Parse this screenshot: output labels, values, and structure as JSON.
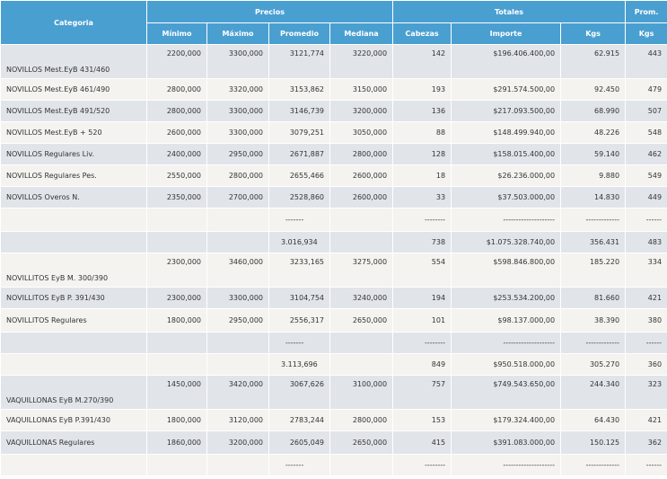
{
  "header": {
    "groups": [
      {
        "key": "categoria",
        "label": "Categoria"
      },
      {
        "key": "precios",
        "label": "Precios"
      },
      {
        "key": "totales",
        "label": "Totales"
      },
      {
        "key": "prom",
        "label": "Prom."
      }
    ],
    "columns": [
      {
        "key": "minimo",
        "label": "Mínimo"
      },
      {
        "key": "maximo",
        "label": "Máximo"
      },
      {
        "key": "promedio",
        "label": "Promedio"
      },
      {
        "key": "mediana",
        "label": "Mediana"
      },
      {
        "key": "cabezas",
        "label": "Cabezas"
      },
      {
        "key": "importe",
        "label": "Importe"
      },
      {
        "key": "kgs",
        "label": "Kgs"
      },
      {
        "key": "prom_kgs",
        "label": "Kgs"
      }
    ]
  },
  "rows": [
    {
      "kind": "data",
      "valign": "bottom",
      "cat": "NOVILLOS Mest.EyB 431/460",
      "cells": [
        "2200,000",
        "3300,000",
        "3121,774",
        "3220,000",
        "142",
        "$196.406.400,00",
        "62.915",
        "443"
      ]
    },
    {
      "kind": "data",
      "cat": "NOVILLOS Mest.EyB 461/490",
      "cells": [
        "2800,000",
        "3320,000",
        "3153,862",
        "3150,000",
        "193",
        "$291.574.500,00",
        "92.450",
        "479"
      ]
    },
    {
      "kind": "data",
      "cat": "NOVILLOS Mest.EyB 491/520",
      "cells": [
        "2800,000",
        "3300,000",
        "3146,739",
        "3200,000",
        "136",
        "$217.093.500,00",
        "68.990",
        "507"
      ]
    },
    {
      "kind": "data",
      "cat": "NOVILLOS Mest.EyB + 520",
      "cells": [
        "2600,000",
        "3300,000",
        "3079,251",
        "3050,000",
        "88",
        "$148.499.940,00",
        "48.226",
        "548"
      ]
    },
    {
      "kind": "data",
      "cat": "NOVILLOS Regulares Liv.",
      "cells": [
        "2400,000",
        "2950,000",
        "2671,887",
        "2800,000",
        "128",
        "$158.015.400,00",
        "59.140",
        "462"
      ]
    },
    {
      "kind": "data",
      "cat": "NOVILLOS Regulares Pes.",
      "cells": [
        "2550,000",
        "2800,000",
        "2655,466",
        "2600,000",
        "18",
        "$26.236.000,00",
        "9.880",
        "549"
      ]
    },
    {
      "kind": "data",
      "cat": "NOVILLOS Overos N.",
      "cells": [
        "2350,000",
        "2700,000",
        "2528,860",
        "2600,000",
        "33",
        "$37.503.000,00",
        "14.830",
        "449"
      ]
    },
    {
      "kind": "separator",
      "cat": "",
      "cells": [
        "",
        "",
        "-------",
        "",
        "--------",
        "--------------------",
        "-------------",
        "------"
      ]
    },
    {
      "kind": "total",
      "cat": "",
      "cells": [
        "",
        "",
        "3.016,934",
        "",
        "738",
        "$1.075.328.740,00",
        "356.431",
        "483"
      ]
    },
    {
      "kind": "data",
      "valign": "bottom",
      "cat": "NOVILLITOS EyB M. 300/390",
      "cells": [
        "2300,000",
        "3460,000",
        "3233,165",
        "3275,000",
        "554",
        "$598.846.800,00",
        "185.220",
        "334"
      ]
    },
    {
      "kind": "data",
      "cat": "NOVILLITOS EyB P. 391/430",
      "cells": [
        "2300,000",
        "3300,000",
        "3104,754",
        "3240,000",
        "194",
        "$253.534.200,00",
        "81.660",
        "421"
      ]
    },
    {
      "kind": "data",
      "cat": "NOVILLITOS Regulares",
      "cells": [
        "1800,000",
        "2950,000",
        "2556,317",
        "2650,000",
        "101",
        "$98.137.000,00",
        "38.390",
        "380"
      ]
    },
    {
      "kind": "separator",
      "cat": "",
      "cells": [
        "",
        "",
        "-------",
        "",
        "--------",
        "--------------------",
        "-------------",
        "------"
      ]
    },
    {
      "kind": "total",
      "cat": "",
      "cells": [
        "",
        "",
        "3.113,696",
        "",
        "849",
        "$950.518.000,00",
        "305.270",
        "360"
      ]
    },
    {
      "kind": "data",
      "valign": "bottom",
      "cat": "VAQUILLONAS EyB M.270/390",
      "cells": [
        "1450,000",
        "3420,000",
        "3067,626",
        "3100,000",
        "757",
        "$749.543.650,00",
        "244.340",
        "323"
      ]
    },
    {
      "kind": "data",
      "cat": "VAQUILLONAS EyB P.391/430",
      "cells": [
        "1800,000",
        "3120,000",
        "2783,244",
        "2800,000",
        "153",
        "$179.324.400,00",
        "64.430",
        "421"
      ]
    },
    {
      "kind": "data",
      "cat": "VAQUILLONAS Regulares",
      "cells": [
        "1860,000",
        "3200,000",
        "2605,049",
        "2650,000",
        "415",
        "$391.083.000,00",
        "150.125",
        "362"
      ]
    },
    {
      "kind": "separator",
      "cat": "",
      "cells": [
        "",
        "",
        "-------",
        "",
        "--------",
        "--------------------",
        "-------------",
        "------"
      ]
    }
  ]
}
